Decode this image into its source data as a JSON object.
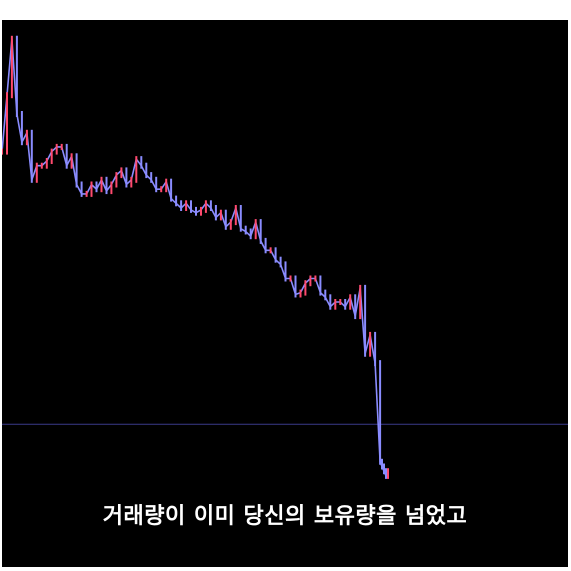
{
  "caption": "거래량이 이미 당신의 보유량을 넘었고",
  "chart_data": {
    "type": "line",
    "title": "",
    "xlabel": "",
    "ylabel": "",
    "x": [
      0,
      5,
      10,
      15,
      20,
      25,
      30,
      35,
      40,
      45,
      50,
      55,
      60,
      65,
      70,
      75,
      80,
      85,
      90,
      95,
      100,
      105,
      110,
      115,
      120,
      125,
      130,
      135,
      140,
      145,
      150,
      155,
      160,
      165,
      170,
      175,
      180,
      185,
      190,
      195,
      200,
      205,
      210,
      215,
      220,
      225,
      230,
      235,
      240,
      245,
      250,
      255,
      260,
      265,
      270,
      275,
      280,
      285,
      290,
      295,
      300,
      305,
      310,
      315,
      320,
      325,
      330,
      335,
      340,
      345,
      350,
      355,
      360,
      365,
      370,
      375,
      380,
      382,
      384,
      386,
      388
    ],
    "series": [
      {
        "values": [
          360,
          420,
          480,
          400,
          370,
          380,
          330,
          345,
          345,
          350,
          360,
          365,
          365,
          345,
          355,
          325,
          315,
          315,
          325,
          320,
          330,
          318,
          325,
          335,
          340,
          325,
          330,
          352,
          345,
          335,
          330,
          320,
          320,
          328,
          310,
          305,
          300,
          305,
          298,
          295,
          298,
          305,
          300,
          290,
          295,
          280,
          285,
          300,
          278,
          275,
          270,
          285,
          265,
          255,
          255,
          245,
          240,
          225,
          225,
          208,
          210,
          220,
          225,
          225,
          210,
          205,
          195,
          200,
          200,
          195,
          205,
          185,
          215,
          145,
          165,
          135,
          30,
          25,
          20,
          15,
          20
        ]
      }
    ],
    "ylim": [
      0,
      500
    ],
    "xlim": [
      0,
      390
    ],
    "reference_line": 70,
    "line_colors": [
      "#ff4a6e",
      "#8a8cff"
    ],
    "background": "#000000",
    "grid": false
  }
}
